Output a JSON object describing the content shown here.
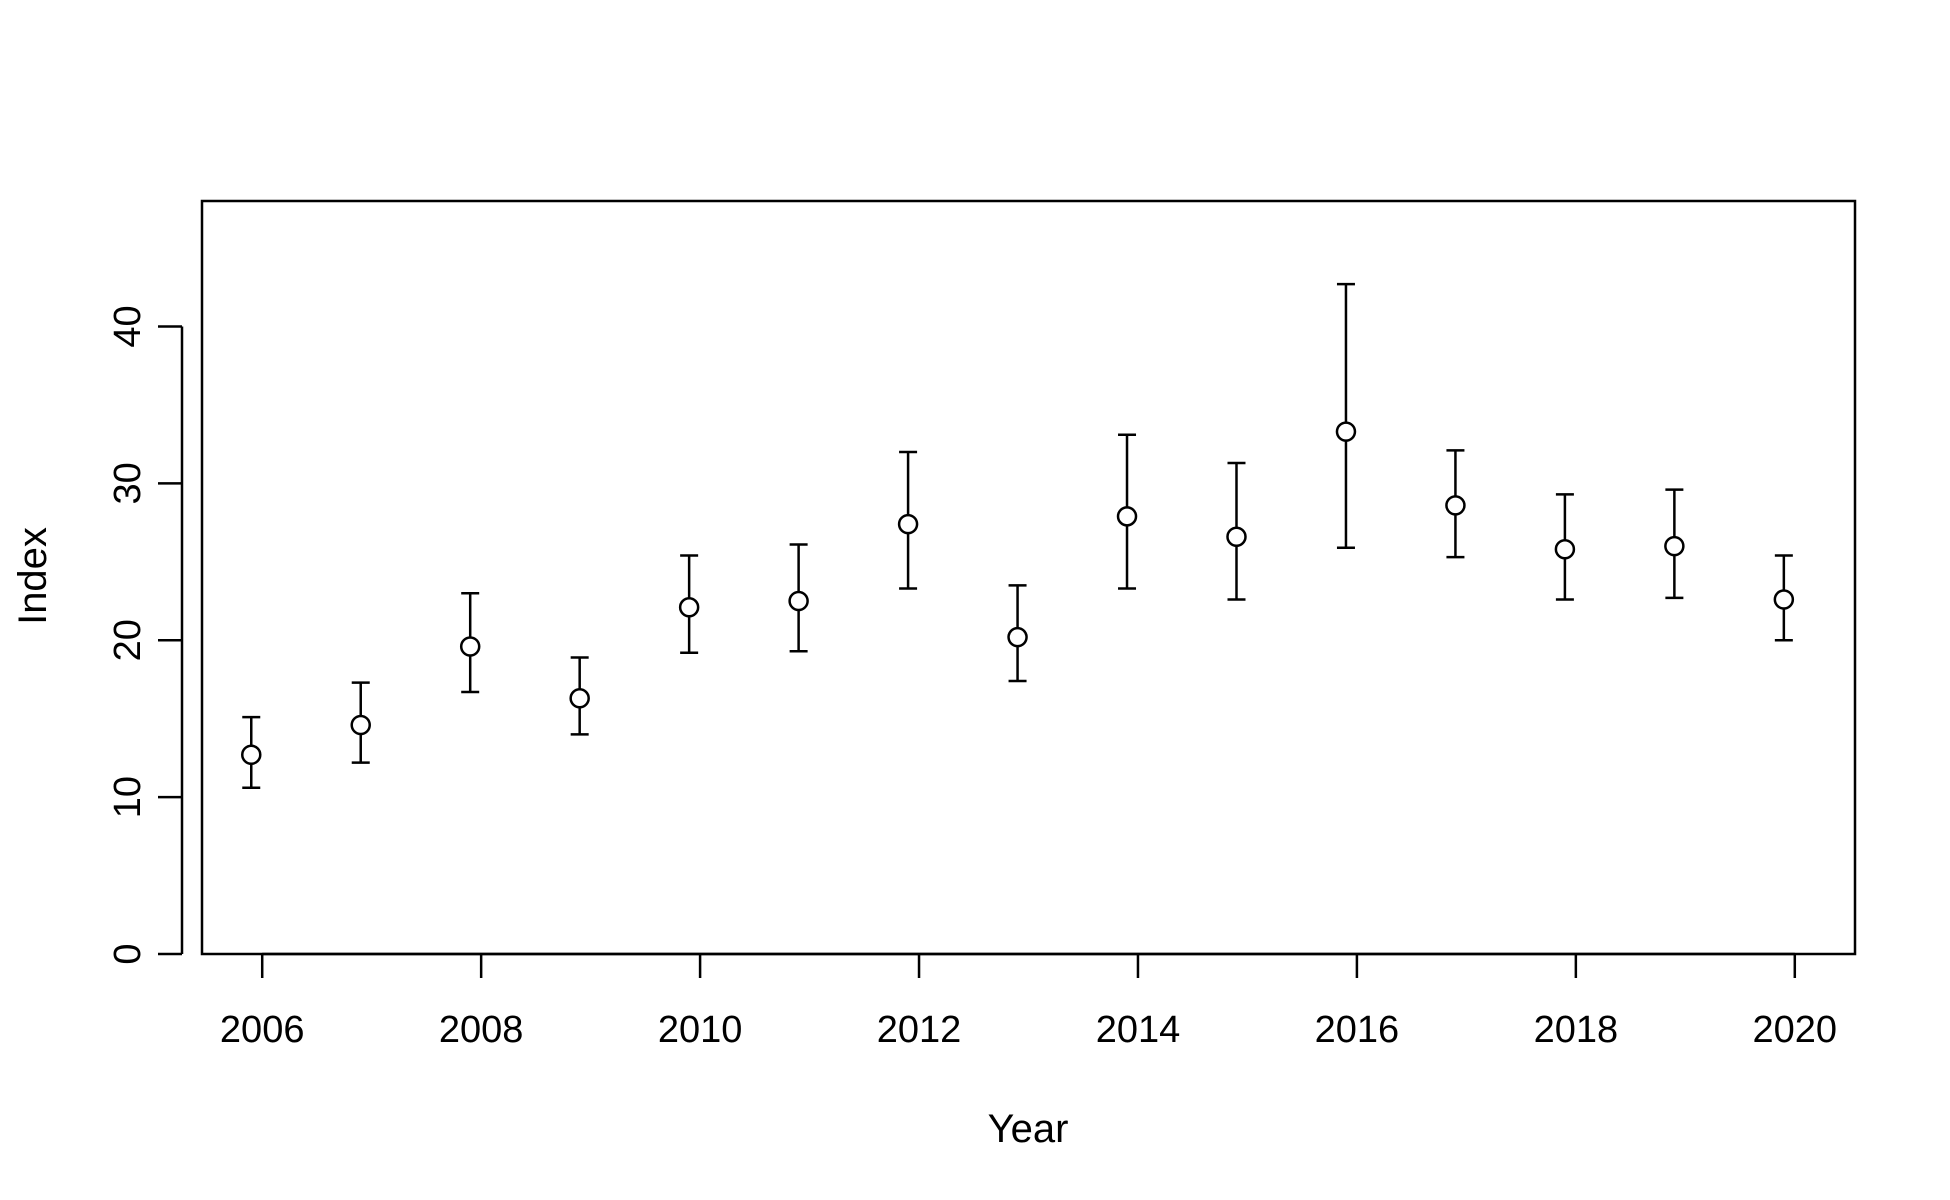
{
  "chart_data": {
    "type": "scatter",
    "title": "",
    "xlabel": "Year",
    "ylabel": "Index",
    "xlim": [
      2005.45,
      2020.55
    ],
    "ylim": [
      0,
      48
    ],
    "x_ticks": [
      2006,
      2008,
      2010,
      2012,
      2014,
      2016,
      2018,
      2020
    ],
    "x_tick_labels": [
      "2006",
      "2008",
      "2010",
      "2012",
      "2014",
      "2016",
      "2018",
      "2020"
    ],
    "y_ticks": [
      0,
      10,
      20,
      30,
      40
    ],
    "y_tick_labels": [
      "0",
      "10",
      "20",
      "30",
      "40"
    ],
    "grid": false,
    "series": [
      {
        "marker": "open-circle",
        "color": "#000000",
        "points": [
          {
            "x": 2005.9,
            "y": 12.7,
            "lower": 10.6,
            "upper": 15.1
          },
          {
            "x": 2006.9,
            "y": 14.6,
            "lower": 12.2,
            "upper": 17.3
          },
          {
            "x": 2007.9,
            "y": 19.6,
            "lower": 16.7,
            "upper": 23.0
          },
          {
            "x": 2008.9,
            "y": 16.3,
            "lower": 14.0,
            "upper": 18.9
          },
          {
            "x": 2009.9,
            "y": 22.1,
            "lower": 19.2,
            "upper": 25.4
          },
          {
            "x": 2010.9,
            "y": 22.5,
            "lower": 19.3,
            "upper": 26.1
          },
          {
            "x": 2011.9,
            "y": 27.4,
            "lower": 23.3,
            "upper": 32.0
          },
          {
            "x": 2012.9,
            "y": 20.2,
            "lower": 17.4,
            "upper": 23.5
          },
          {
            "x": 2013.9,
            "y": 27.9,
            "lower": 23.3,
            "upper": 33.1
          },
          {
            "x": 2014.9,
            "y": 26.6,
            "lower": 22.6,
            "upper": 31.3
          },
          {
            "x": 2015.9,
            "y": 33.3,
            "lower": 25.9,
            "upper": 42.7
          },
          {
            "x": 2016.9,
            "y": 28.6,
            "lower": 25.3,
            "upper": 32.1
          },
          {
            "x": 2017.9,
            "y": 25.8,
            "lower": 22.6,
            "upper": 29.3
          },
          {
            "x": 2018.9,
            "y": 26.0,
            "lower": 22.7,
            "upper": 29.6
          },
          {
            "x": 2019.9,
            "y": 22.6,
            "lower": 20.0,
            "upper": 25.4
          }
        ]
      }
    ]
  }
}
